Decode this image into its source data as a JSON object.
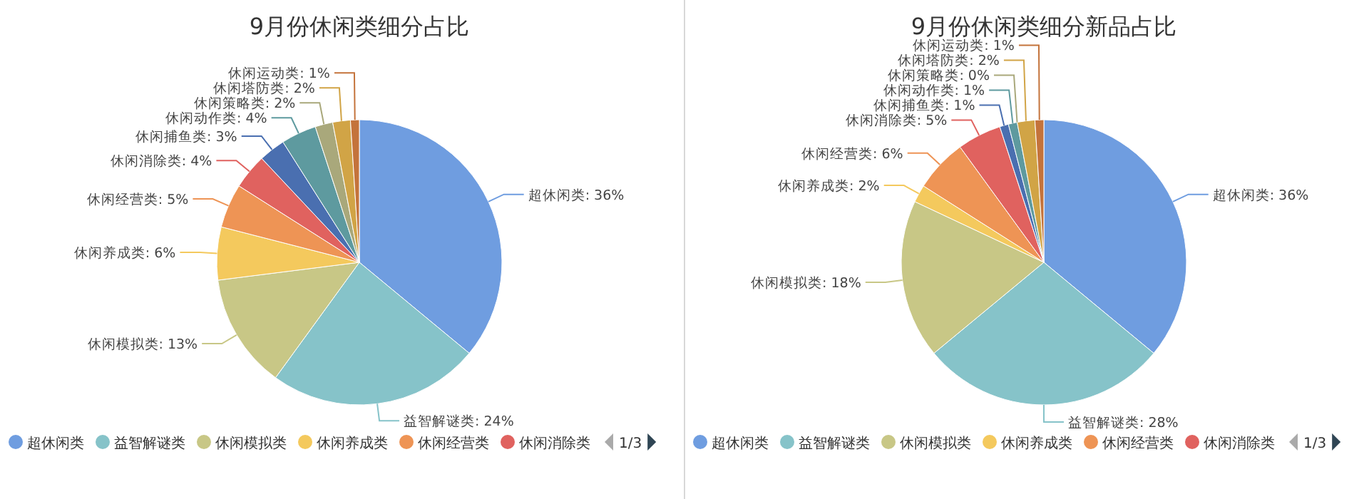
{
  "chart_data": [
    {
      "type": "pie",
      "title": "9月份休闲类细分占比",
      "categories": [
        "超休闲类",
        "益智解谜类",
        "休闲模拟类",
        "休闲养成类",
        "休闲经营类",
        "休闲消除类",
        "休闲捕鱼类",
        "休闲动作类",
        "休闲策略类",
        "休闲塔防类",
        "休闲运动类"
      ],
      "values": [
        36,
        24,
        13,
        6,
        5,
        4,
        3,
        4,
        2,
        2,
        1
      ],
      "value_labels": [
        ": 36%",
        ": 24%",
        ": 13%",
        ": 6%",
        ": 5%",
        ": 4%",
        ": 3%",
        ": 4%",
        ": 2%",
        ": 2%",
        ": 1%"
      ],
      "colors": [
        "#6f9de0",
        "#86c3c9",
        "#c8c786",
        "#f4c95d",
        "#ee9455",
        "#e0625f",
        "#4a6fb0",
        "#5e9a9f",
        "#a9a87b",
        "#d1a446",
        "#c4733b"
      ],
      "legend": "bottom",
      "annotations": [
        "1/3"
      ]
    },
    {
      "type": "pie",
      "title": "9月份休闲类细分新品占比",
      "categories": [
        "超休闲类",
        "益智解谜类",
        "休闲模拟类",
        "休闲养成类",
        "休闲经营类",
        "休闲消除类",
        "休闲捕鱼类",
        "休闲动作类",
        "休闲策略类",
        "休闲塔防类",
        "休闲运动类"
      ],
      "values": [
        36,
        28,
        18,
        2,
        6,
        5,
        1,
        1,
        0,
        2,
        1
      ],
      "value_labels": [
        ": 36%",
        ": 28%",
        ": 18%",
        ": 2%",
        ": 6%",
        ": 5%",
        ": 1%",
        ": 1%",
        ": 0%",
        ": 2%",
        ": 1%"
      ],
      "colors": [
        "#6f9de0",
        "#86c3c9",
        "#c8c786",
        "#f4c95d",
        "#ee9455",
        "#e0625f",
        "#4a6fb0",
        "#5e9a9f",
        "#a9a87b",
        "#d1a446",
        "#c4733b"
      ],
      "legend": "bottom",
      "annotations": [
        "1/3"
      ]
    }
  ]
}
